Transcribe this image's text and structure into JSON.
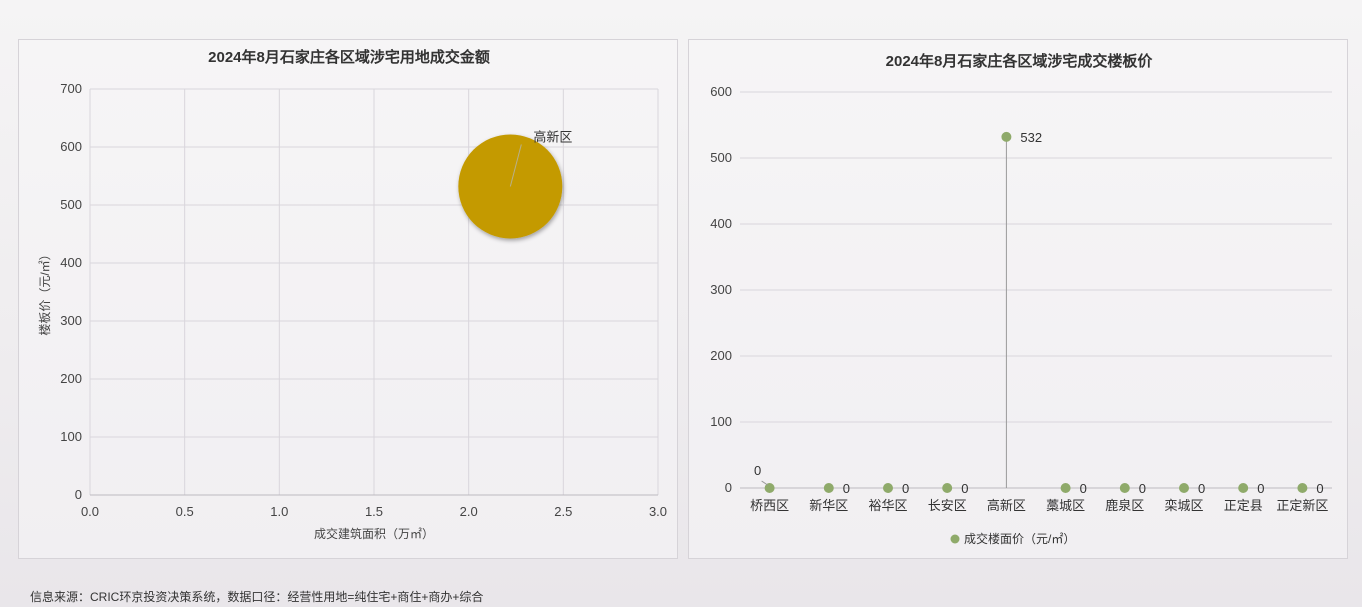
{
  "footer": {
    "source_text": "信息来源：CRIC环京投资决策系统，数据口径：经营性用地=纯住宅+商住+商办+综合"
  },
  "chart_data": [
    {
      "type": "scatter",
      "title": "2024年8月石家庄各区域涉宅用地成交金额",
      "xlabel": "成交建筑面积（万㎡）",
      "ylabel": "楼板价（元/㎡）",
      "xlim": [
        0,
        3
      ],
      "ylim": [
        0,
        700
      ],
      "x_ticks": [
        "0.0",
        "0.5",
        "1.0",
        "1.5",
        "2.0",
        "2.5",
        "3.0"
      ],
      "y_ticks": [
        "0",
        "100",
        "200",
        "300",
        "400",
        "500",
        "600",
        "700"
      ],
      "grid": true,
      "bubble_color": "#c49a00",
      "points": [
        {
          "label": "高新区",
          "x": 2.22,
          "y": 532
        }
      ]
    },
    {
      "type": "scatter",
      "title": "2024年8月石家庄各区域涉宅成交楼板价",
      "categories": [
        "桥西区",
        "新华区",
        "裕华区",
        "长安区",
        "高新区",
        "藁城区",
        "鹿泉区",
        "栾城区",
        "正定县",
        "正定新区"
      ],
      "series": [
        {
          "name": "成交楼面价（元/㎡）",
          "values": [
            0,
            0,
            0,
            0,
            532,
            0,
            0,
            0,
            0,
            0
          ]
        }
      ],
      "data_labels": [
        "0",
        "0",
        "0",
        "0",
        "532",
        "0",
        "0",
        "0",
        "0",
        "0"
      ],
      "ylim": [
        0,
        600
      ],
      "y_ticks": [
        "0",
        "100",
        "200",
        "300",
        "400",
        "500",
        "600"
      ],
      "grid": true,
      "legend": "bottom",
      "marker_color": "#8faa6a"
    }
  ]
}
